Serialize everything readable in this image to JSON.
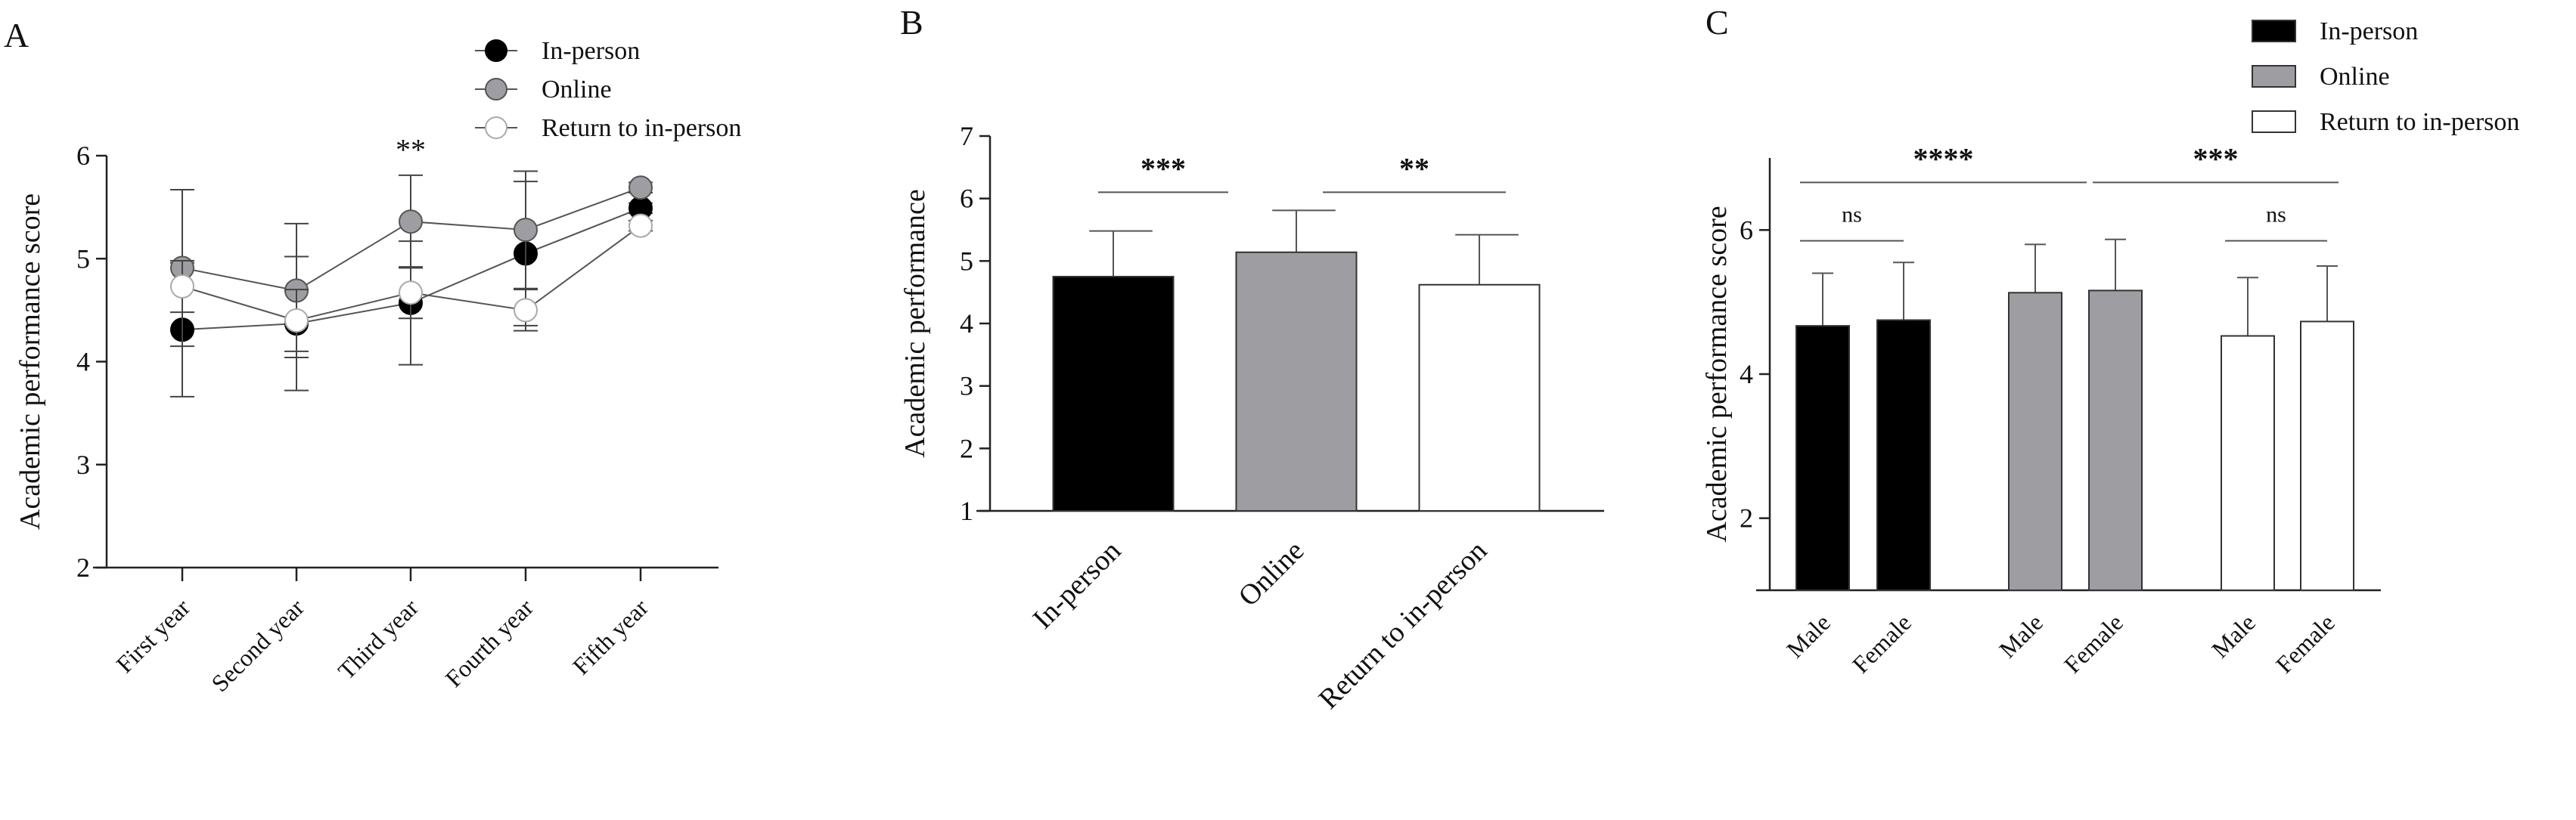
{
  "colors": {
    "in_person": "#000000",
    "online": "#9e9ea2",
    "return": "#ffffff",
    "axis": "#222222",
    "line": "#555555"
  },
  "chart_data": [
    {
      "panel_label": "A",
      "type": "line",
      "ylabel": "Academic performance score",
      "ylim": [
        2,
        6
      ],
      "yticks": [
        2,
        3,
        4,
        5,
        6
      ],
      "categories": [
        "First year",
        "Second year",
        "Third year",
        "Fourth year",
        "Fifth year"
      ],
      "legend_position": "top-right",
      "series": [
        {
          "name": "In-person",
          "values": [
            4.31,
            4.37,
            4.57,
            5.05,
            5.49
          ],
          "error": [
            0.65,
            0.65,
            0.6,
            0.7,
            0.05
          ],
          "marker": "filled-black"
        },
        {
          "name": "Online",
          "values": [
            4.91,
            4.69,
            5.36,
            5.28,
            5.69
          ],
          "error": [
            0.76,
            0.65,
            0.45,
            0.57,
            0.05
          ],
          "marker": "filled-gray"
        },
        {
          "name": "Return to in-person",
          "values": [
            4.73,
            4.4,
            4.67,
            4.5,
            5.32
          ],
          "error": [
            0.25,
            0.3,
            0.25,
            0.2,
            0.05
          ],
          "marker": "open"
        }
      ],
      "annotations": [
        {
          "category": "Third year",
          "text": "**"
        }
      ]
    },
    {
      "panel_label": "B",
      "type": "bar",
      "ylabel": "Academic performance",
      "ylim": [
        1,
        7
      ],
      "yticks": [
        1,
        2,
        3,
        4,
        5,
        6,
        7
      ],
      "categories": [
        "In-person",
        "Online",
        "Return to in-person"
      ],
      "values": [
        4.75,
        5.14,
        4.62
      ],
      "error": [
        0.73,
        0.67,
        0.8
      ],
      "fills": [
        "in_person",
        "online",
        "return"
      ],
      "significance": [
        {
          "from": 0,
          "to": 1,
          "y": 6.1,
          "text": "***"
        },
        {
          "from": 1,
          "to": 2,
          "y": 6.1,
          "text": "**"
        }
      ]
    },
    {
      "panel_label": "C",
      "type": "bar",
      "ylabel": "Academic performance score",
      "ylim": [
        1,
        7
      ],
      "yticks": [
        2,
        4,
        6
      ],
      "categories": [
        "Male",
        "Female",
        "Male",
        "Female",
        "Male",
        "Female"
      ],
      "groups": [
        "In-person",
        "In-person",
        "Online",
        "Online",
        "Return to in-person",
        "Return to in-person"
      ],
      "values": [
        4.67,
        4.75,
        5.13,
        5.16,
        4.53,
        4.73
      ],
      "error": [
        0.73,
        0.8,
        0.67,
        0.71,
        0.81,
        0.77
      ],
      "fills": [
        "in_person",
        "in_person",
        "online",
        "online",
        "return",
        "return"
      ],
      "legend": [
        "In-person",
        "Online",
        "Return to in-person"
      ],
      "legend_position": "top-right",
      "significance": [
        {
          "from": 0,
          "to": 2.5,
          "y": 6.66,
          "text": "****"
        },
        {
          "from": 3,
          "to": 5,
          "y": 6.66,
          "text": "***"
        },
        {
          "from": 0,
          "to": 1,
          "y": 5.85,
          "text": "ns"
        },
        {
          "from": 4,
          "to": 5,
          "y": 5.85,
          "text": "ns"
        }
      ]
    }
  ]
}
